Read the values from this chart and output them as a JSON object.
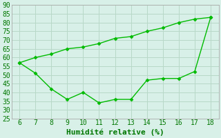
{
  "x_lower": [
    6,
    7,
    8,
    9,
    10,
    11,
    12,
    13,
    14,
    15,
    16,
    17,
    18
  ],
  "y_lower": [
    57,
    51,
    42,
    36,
    40,
    34,
    36,
    36,
    47,
    48,
    48,
    52,
    83
  ],
  "x_upper": [
    6,
    7,
    8,
    9,
    10,
    11,
    12,
    13,
    14,
    15,
    16,
    17,
    18
  ],
  "y_upper": [
    57,
    60,
    62,
    65,
    66,
    68,
    71,
    72,
    75,
    77,
    80,
    82,
    83
  ],
  "line_color": "#00bb00",
  "bg_color": "#d8f0e8",
  "grid_color": "#b8d8c8",
  "xlabel": "Humidité relative (%)",
  "xlim": [
    5.5,
    18.5
  ],
  "ylim": [
    25,
    90
  ],
  "yticks": [
    25,
    30,
    35,
    40,
    45,
    50,
    55,
    60,
    65,
    70,
    75,
    80,
    85,
    90
  ],
  "xticks": [
    6,
    7,
    8,
    9,
    10,
    11,
    12,
    13,
    14,
    15,
    16,
    17,
    18
  ],
  "xlabel_color": "#007700",
  "xlabel_fontsize": 8,
  "tick_fontsize": 7,
  "tick_color": "#007700"
}
